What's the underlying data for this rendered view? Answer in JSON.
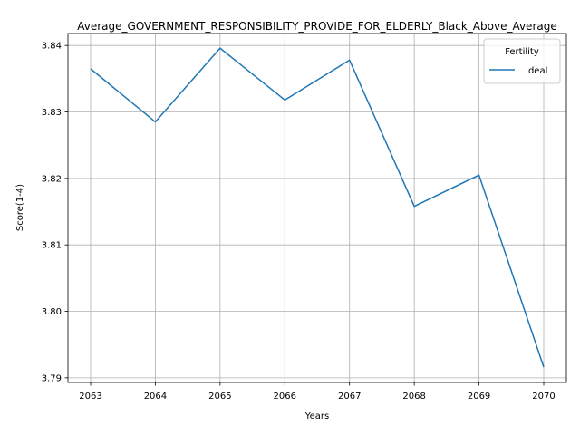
{
  "chart_data": {
    "type": "line",
    "title": "Average_GOVERNMENT_RESPONSIBILITY_PROVIDE_FOR_ELDERLY_Black_Above_Average",
    "xlabel": "Years",
    "ylabel": "Score(1-4)",
    "x": [
      2063,
      2064,
      2065,
      2066,
      2067,
      2068,
      2069,
      2070
    ],
    "xticks": [
      "2063",
      "2064",
      "2065",
      "2066",
      "2067",
      "2068",
      "2069",
      "2070"
    ],
    "yticks": [
      "3.79",
      "3.80",
      "3.81",
      "3.82",
      "3.83",
      "3.84"
    ],
    "ylim": [
      3.7893,
      3.8418
    ],
    "grid": true,
    "legend": {
      "title": "Fertility",
      "placement": "top-right"
    },
    "series": [
      {
        "name": "Ideal",
        "color": "#1f77b4",
        "values": [
          3.8365,
          3.8285,
          3.8396,
          3.8318,
          3.8378,
          3.8158,
          3.8205,
          3.7916
        ]
      }
    ]
  }
}
